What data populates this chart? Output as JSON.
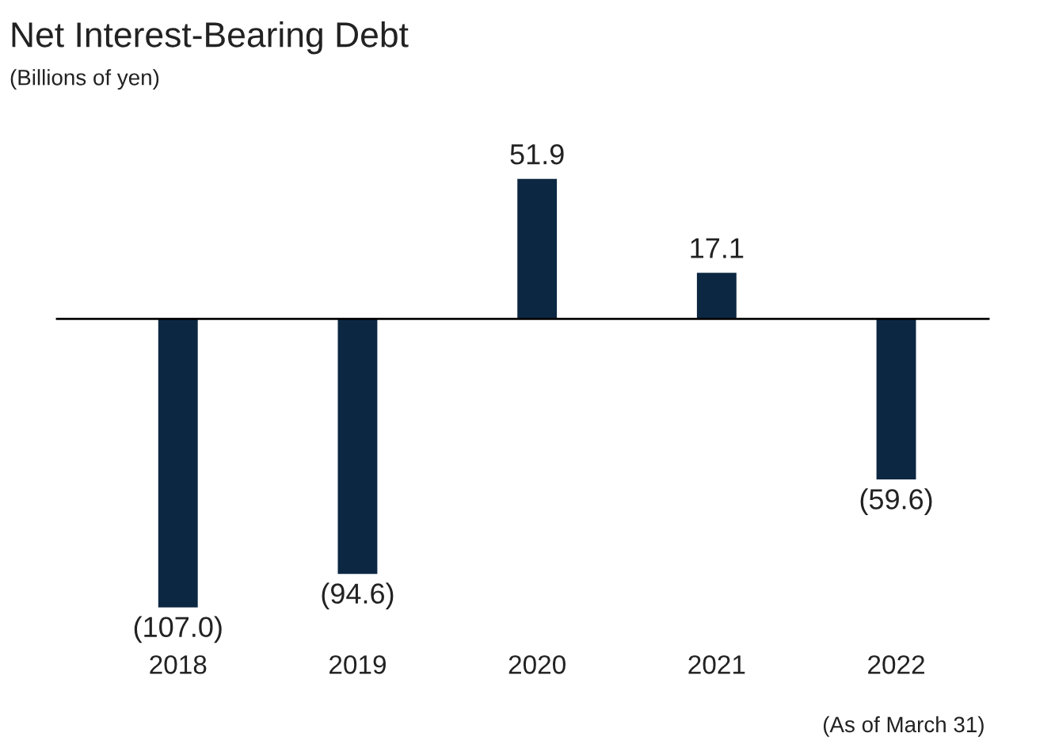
{
  "chart_data": {
    "type": "bar",
    "title": "Net Interest-Bearing Debt",
    "subtitle": "(Billions of yen)",
    "categories": [
      "2018",
      "2019",
      "2020",
      "2021",
      "2022"
    ],
    "values": [
      -107.0,
      -94.6,
      51.9,
      17.1,
      -59.6
    ],
    "value_labels": [
      "(107.0)",
      "(94.6)",
      "51.9",
      "17.1",
      "(59.6)"
    ],
    "color": "#0c2742",
    "annotations": [
      "(As of March 31)"
    ],
    "grid": false,
    "legend": false
  }
}
